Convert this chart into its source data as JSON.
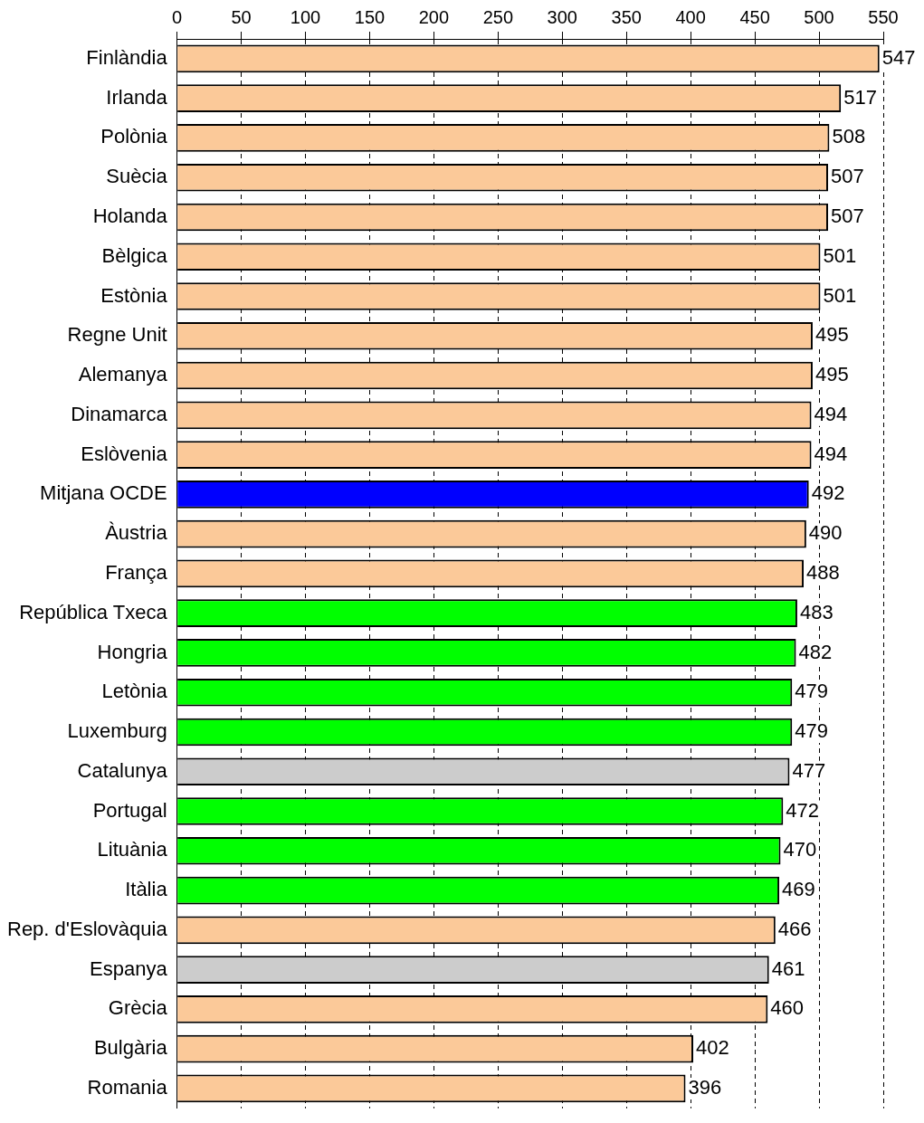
{
  "chart_data": {
    "type": "bar",
    "orientation": "horizontal",
    "categories": [
      "Finlàndia",
      "Irlanda",
      "Polònia",
      "Suècia",
      "Holanda",
      "Bèlgica",
      "Estònia",
      "Regne Unit",
      "Alemanya",
      "Dinamarca",
      "Eslòvenia",
      "Mitjana OCDE",
      "Àustria",
      "França",
      "República Txeca",
      "Hongria",
      "Letònia",
      "Luxemburg",
      "Catalunya",
      "Portugal",
      "Lituània",
      "Itàlia",
      "Rep. d'Eslovàquia",
      "Espanya",
      "Grècia",
      "Bulgària",
      "Romania"
    ],
    "values": [
      547,
      517,
      508,
      507,
      507,
      501,
      501,
      495,
      495,
      494,
      494,
      492,
      490,
      488,
      483,
      482,
      479,
      479,
      477,
      472,
      470,
      469,
      466,
      461,
      460,
      402,
      396
    ],
    "colors": [
      "#fbc999",
      "#fbc999",
      "#fbc999",
      "#fbc999",
      "#fbc999",
      "#fbc999",
      "#fbc999",
      "#fbc999",
      "#fbc999",
      "#fbc999",
      "#fbc999",
      "#0000ff",
      "#fbc999",
      "#fbc999",
      "#00ff00",
      "#00ff00",
      "#00ff00",
      "#00ff00",
      "#cccccc",
      "#00ff00",
      "#00ff00",
      "#00ff00",
      "#fbc999",
      "#cccccc",
      "#fbc999",
      "#fbc999",
      "#fbc999"
    ],
    "xlim": [
      0,
      550
    ],
    "xticks": [
      0,
      50,
      100,
      150,
      200,
      250,
      300,
      350,
      400,
      450,
      500,
      550
    ],
    "grid": "x",
    "line_style": "dashed",
    "data_labels": true,
    "legend": false
  }
}
